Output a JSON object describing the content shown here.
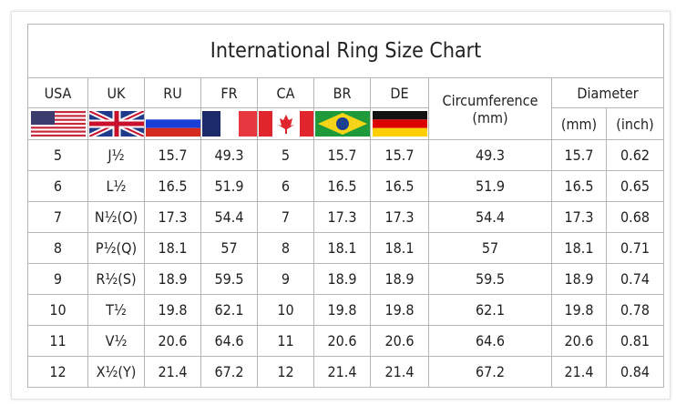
{
  "title": "International Ring Size Chart",
  "headers": {
    "usa": "USA",
    "uk": "UK",
    "ru": "RU",
    "fr": "FR",
    "ca": "CA",
    "br": "BR",
    "de": "DE",
    "circumference": "Circumference",
    "circumference_unit": "(mm)",
    "diameter": "Diameter",
    "diameter_mm": "(mm)",
    "diameter_inch": "(inch)"
  },
  "flags": [
    "us-flag",
    "uk-flag",
    "russia-flag",
    "france-flag",
    "canada-flag",
    "brazil-flag",
    "germany-flag"
  ],
  "rows": [
    [
      "5",
      "J½",
      "15.7",
      "49.3",
      "5",
      "15.7",
      "15.7",
      "49.3",
      "15.7",
      "0.62"
    ],
    [
      "6",
      "L½",
      "16.5",
      "51.9",
      "6",
      "16.5",
      "16.5",
      "51.9",
      "16.5",
      "0.65"
    ],
    [
      "7",
      "N½(O)",
      "17.3",
      "54.4",
      "7",
      "17.3",
      "17.3",
      "54.4",
      "17.3",
      "0.68"
    ],
    [
      "8",
      "P½(Q)",
      "18.1",
      "57",
      "8",
      "18.1",
      "18.1",
      "57",
      "18.1",
      "0.71"
    ],
    [
      "9",
      "R½(S)",
      "18.9",
      "59.5",
      "9",
      "18.9",
      "18.9",
      "59.5",
      "18.9",
      "0.74"
    ],
    [
      "10",
      "T½",
      "19.8",
      "62.1",
      "10",
      "19.8",
      "19.8",
      "62.1",
      "19.8",
      "0.78"
    ],
    [
      "11",
      "V½",
      "20.6",
      "64.6",
      "11",
      "20.6",
      "20.6",
      "64.6",
      "20.6",
      "0.81"
    ],
    [
      "12",
      "X½(Y)",
      "21.4",
      "67.2",
      "12",
      "21.4",
      "21.4",
      "67.2",
      "21.4",
      "0.84"
    ]
  ]
}
